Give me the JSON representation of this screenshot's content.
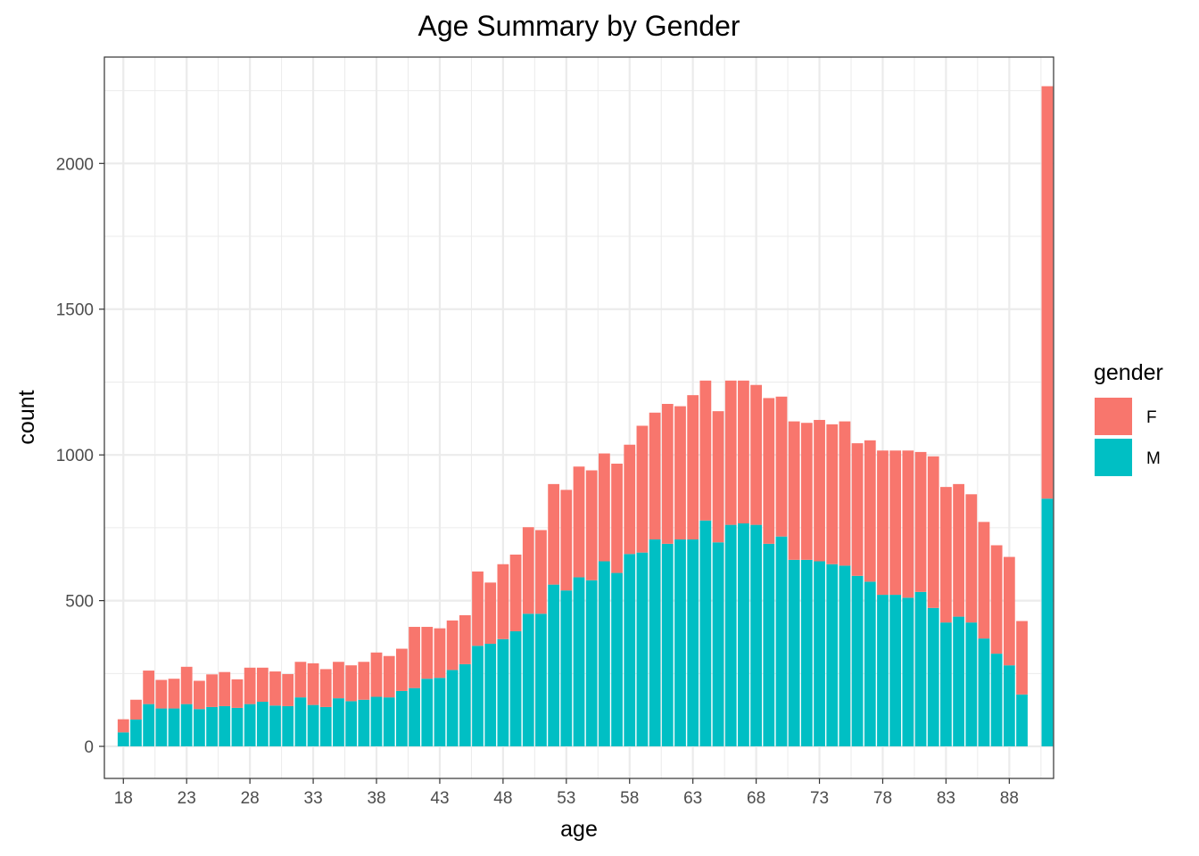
{
  "chart_data": {
    "type": "bar",
    "stacked": true,
    "title": "Age Summary by Gender",
    "xlabel": "age",
    "ylabel": "count",
    "x_ticks": [
      "18",
      "23",
      "28",
      "33",
      "38",
      "43",
      "48",
      "53",
      "58",
      "63",
      "68",
      "73",
      "78",
      "83",
      "88"
    ],
    "y_ticks": [
      0,
      500,
      1000,
      1500,
      2000
    ],
    "xlim": [
      16.5,
      91.5
    ],
    "ylim": [
      -110,
      2365
    ],
    "grid": true,
    "legend": {
      "title": "gender",
      "position": "right"
    },
    "categories": [
      18,
      19,
      20,
      21,
      22,
      23,
      24,
      25,
      26,
      27,
      28,
      29,
      30,
      31,
      32,
      33,
      34,
      35,
      36,
      37,
      38,
      39,
      40,
      41,
      42,
      43,
      44,
      45,
      46,
      47,
      48,
      49,
      50,
      51,
      52,
      53,
      54,
      55,
      56,
      57,
      58,
      59,
      60,
      61,
      62,
      63,
      64,
      65,
      66,
      67,
      68,
      69,
      70,
      71,
      72,
      73,
      74,
      75,
      76,
      77,
      78,
      79,
      80,
      81,
      82,
      83,
      84,
      85,
      86,
      87,
      88,
      89,
      91
    ],
    "series": [
      {
        "name": "M",
        "color": "#00BFC4",
        "values": [
          48,
          92,
          145,
          130,
          130,
          145,
          128,
          135,
          138,
          132,
          145,
          153,
          140,
          138,
          168,
          142,
          135,
          165,
          155,
          160,
          170,
          168,
          190,
          200,
          232,
          235,
          262,
          282,
          345,
          352,
          368,
          395,
          455,
          455,
          555,
          535,
          580,
          570,
          635,
          595,
          660,
          665,
          710,
          695,
          710,
          710,
          775,
          700,
          760,
          765,
          760,
          695,
          720,
          640,
          640,
          635,
          625,
          620,
          585,
          565,
          520,
          520,
          510,
          530,
          475,
          425,
          445,
          425,
          370,
          318,
          278,
          178,
          850
        ]
      },
      {
        "name": "F",
        "color": "#F8766D",
        "values": [
          45,
          68,
          115,
          98,
          102,
          128,
          97,
          112,
          117,
          98,
          125,
          117,
          117,
          110,
          122,
          143,
          130,
          125,
          123,
          130,
          152,
          142,
          145,
          210,
          178,
          170,
          170,
          168,
          255,
          210,
          257,
          263,
          297,
          287,
          345,
          345,
          380,
          377,
          370,
          375,
          375,
          435,
          435,
          480,
          457,
          495,
          480,
          450,
          495,
          490,
          480,
          500,
          480,
          475,
          470,
          485,
          480,
          495,
          455,
          485,
          495,
          495,
          505,
          480,
          520,
          465,
          455,
          440,
          400,
          372,
          372,
          252,
          1415
        ]
      }
    ]
  }
}
